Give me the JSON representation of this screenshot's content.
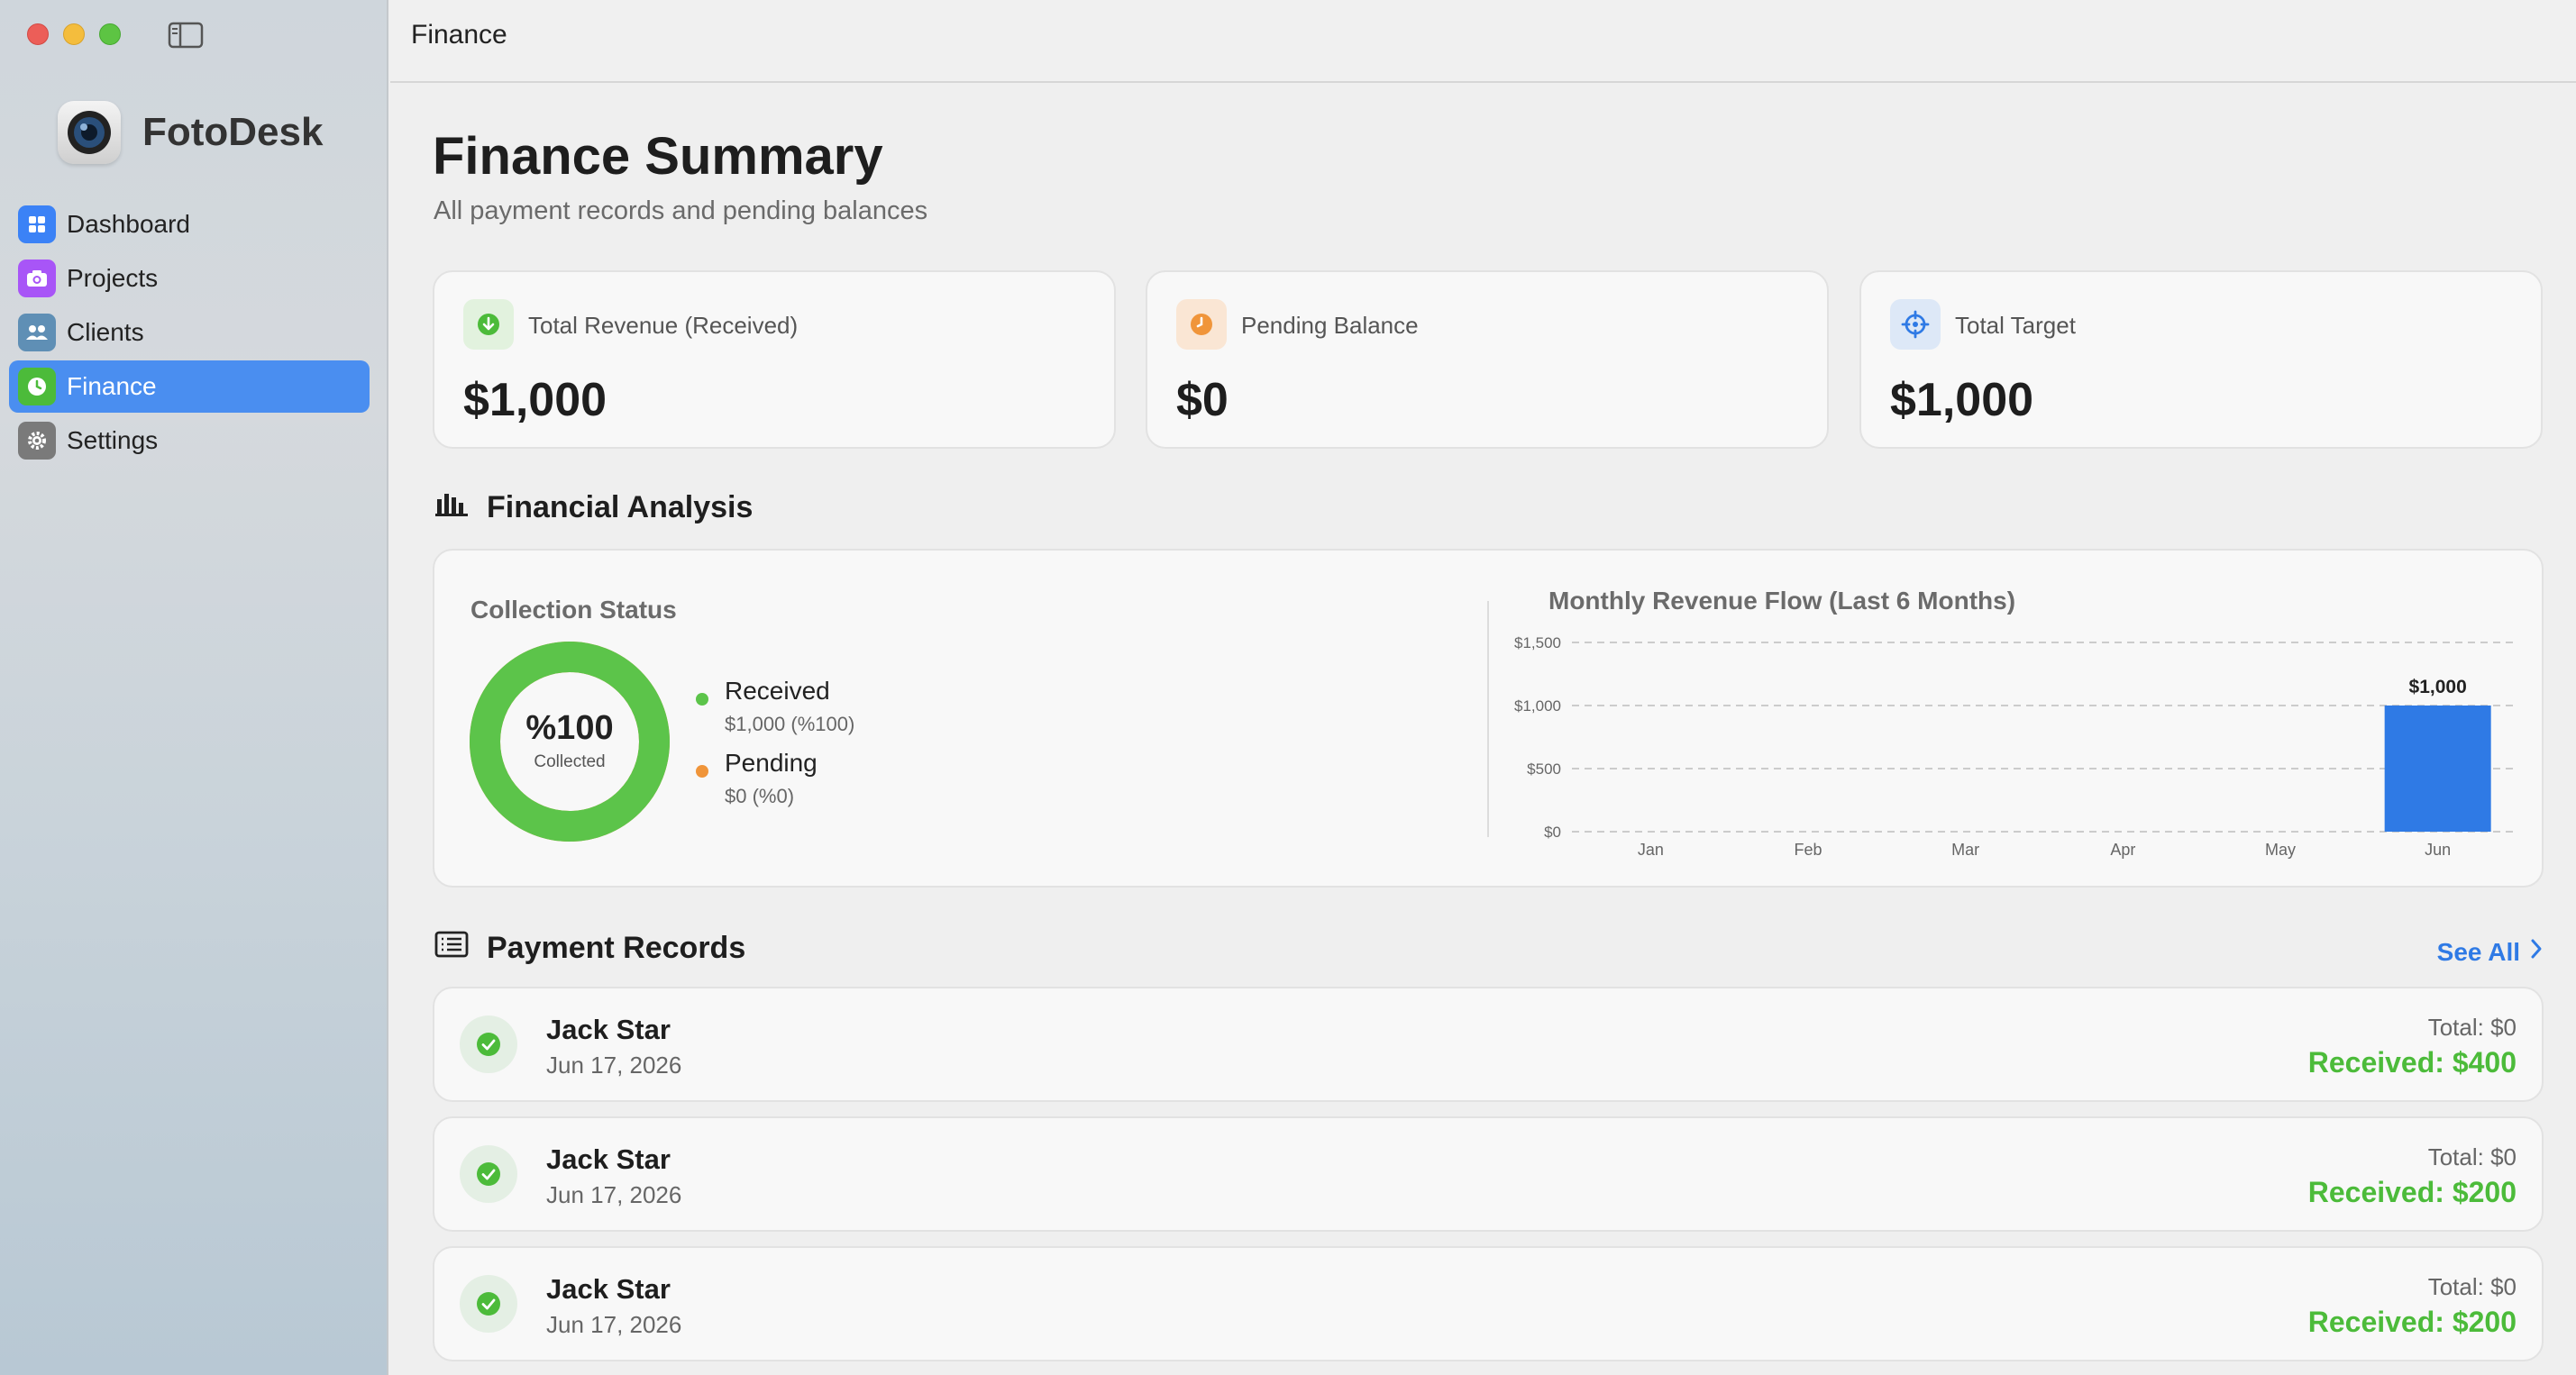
{
  "app": {
    "name": "FotoDesk"
  },
  "topbar": {
    "title": "Finance"
  },
  "sidebar": {
    "items": [
      {
        "label": "Dashboard",
        "icon": "grid-icon",
        "color": "#3b82f6"
      },
      {
        "label": "Projects",
        "icon": "camera-icon",
        "color": "#a855f7"
      },
      {
        "label": "Clients",
        "icon": "people-icon",
        "color": "#5f8fb5"
      },
      {
        "label": "Finance",
        "icon": "clock-coin-icon",
        "color": "#4cbb3a",
        "active": true
      },
      {
        "label": "Settings",
        "icon": "gear-icon",
        "color": "#7a7a7a"
      }
    ]
  },
  "page": {
    "title": "Finance Summary",
    "subtitle": "All payment records and pending balances"
  },
  "stats": [
    {
      "label": "Total Revenue (Received)",
      "value": "$1,000",
      "icon": "arrow-down-circle-icon",
      "color": "#4cbb3a"
    },
    {
      "label": "Pending Balance",
      "value": "$0",
      "icon": "clock-icon",
      "color": "#f0953a"
    },
    {
      "label": "Total Target",
      "value": "$1,000",
      "icon": "target-icon",
      "color": "#2f7ae5"
    }
  ],
  "analysis": {
    "title": "Financial Analysis",
    "collection_title": "Collection Status",
    "donut_percent": "%100",
    "donut_caption": "Collected",
    "received_fraction": 1.0,
    "legend": [
      {
        "label": "Received",
        "value": "$1,000 (%100)",
        "color": "#5cc44a"
      },
      {
        "label": "Pending",
        "value": "$0 (%0)",
        "color": "#f0953a"
      }
    ]
  },
  "chart_data": {
    "type": "bar",
    "title": "Monthly Revenue Flow (Last 6 Months)",
    "categories": [
      "Jan",
      "Feb",
      "Mar",
      "Apr",
      "May",
      "Jun"
    ],
    "values": [
      0,
      0,
      0,
      0,
      0,
      1000
    ],
    "data_labels": [
      "",
      "",
      "",
      "",
      "",
      "$1,000"
    ],
    "ylim": [
      0,
      1500
    ],
    "yticks": [
      0,
      500,
      1000,
      1500
    ],
    "ytick_labels": [
      "$0",
      "$500",
      "$1,000",
      "$1,500"
    ],
    "grid": true,
    "bar_color": "#2f7ae5"
  },
  "records": {
    "title": "Payment Records",
    "see_all": "See All",
    "items": [
      {
        "name": "Jack Star",
        "date": "Jun 17, 2026",
        "total": "Total: $0",
        "received": "Received: $400"
      },
      {
        "name": "Jack Star",
        "date": "Jun 17, 2026",
        "total": "Total: $0",
        "received": "Received: $200"
      },
      {
        "name": "Jack Star",
        "date": "Jun 17, 2026",
        "total": "Total: $0",
        "received": "Received: $200"
      }
    ]
  }
}
